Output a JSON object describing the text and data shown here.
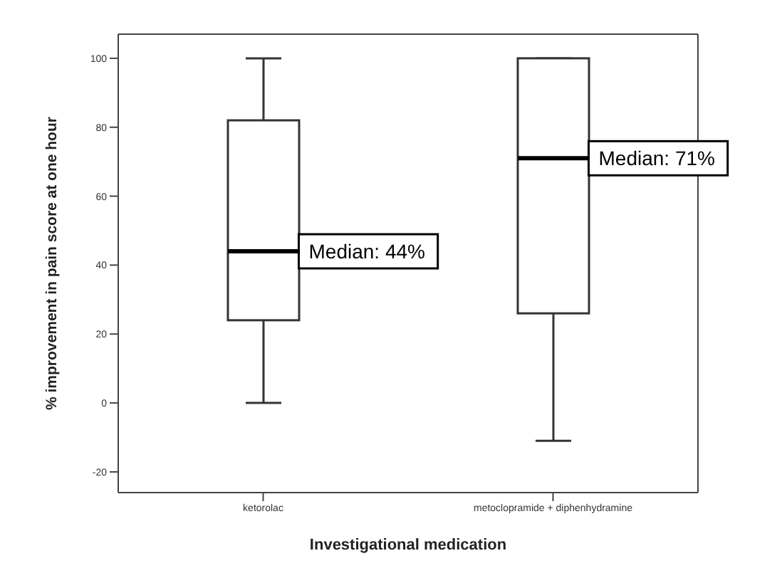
{
  "chart_data": {
    "type": "box",
    "xlabel": "Investigational medication",
    "ylabel": "% improvement in pain score at one hour",
    "categories": [
      "ketorolac",
      "metoclopramide + diphenhydramine"
    ],
    "color": "#ffffff",
    "boxes": [
      {
        "low": 0,
        "q1": 24,
        "median": 44,
        "q3": 82,
        "high": 100
      },
      {
        "low": -11,
        "q1": 26,
        "median": 71,
        "q3": 100,
        "high": 100
      }
    ],
    "ylim": [
      -26,
      107
    ],
    "yticks": [
      -20,
      0,
      20,
      40,
      60,
      80,
      100
    ],
    "grid": false,
    "annotations": [
      {
        "text": "Median: 44%",
        "x": "ketorolac",
        "y": 44
      },
      {
        "text": "Median: 71%",
        "x": "metoclopramide + diphenhydramine",
        "y": 71
      }
    ]
  }
}
